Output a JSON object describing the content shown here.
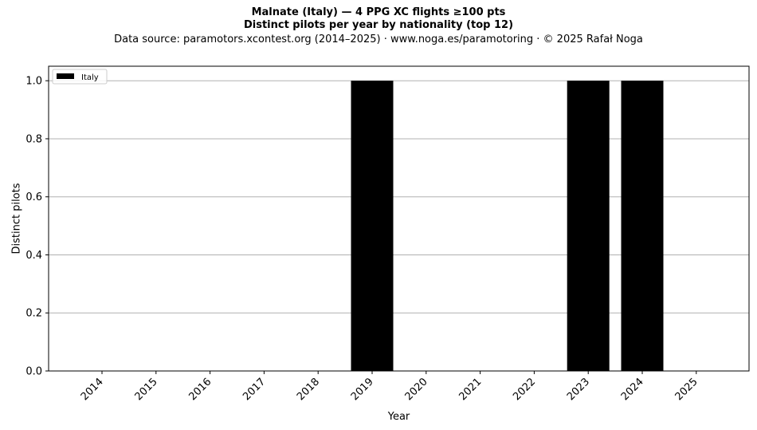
{
  "chart_data": {
    "type": "bar",
    "title_lines": [
      "Malnate (Italy)  —  4 PPG XC flights ≥100 pts",
      "Distinct pilots per year by nationality (top 12)"
    ],
    "subtitle": "Data source: paramotors.xcontest.org (2014–2025)  ·  www.noga.es/paramotoring  ·  © 2025 Rafał Noga",
    "xlabel": "Year",
    "ylabel": "Distinct pilots",
    "categories": [
      "2014",
      "2015",
      "2016",
      "2017",
      "2018",
      "2019",
      "2020",
      "2021",
      "2022",
      "2023",
      "2024",
      "2025"
    ],
    "series": [
      {
        "name": "Italy",
        "color": "#000000",
        "values": [
          0,
          0,
          0,
          0,
          0,
          1,
          0,
          0,
          0,
          1,
          1,
          0
        ]
      }
    ],
    "ylim": [
      0,
      1.05
    ],
    "yticks": [
      0.0,
      0.2,
      0.4,
      0.6,
      0.8,
      1.0
    ],
    "ytick_labels": [
      "0.0",
      "0.2",
      "0.4",
      "0.6",
      "0.8",
      "1.0"
    ],
    "grid": "horizontal",
    "legend_position": "top-left"
  }
}
